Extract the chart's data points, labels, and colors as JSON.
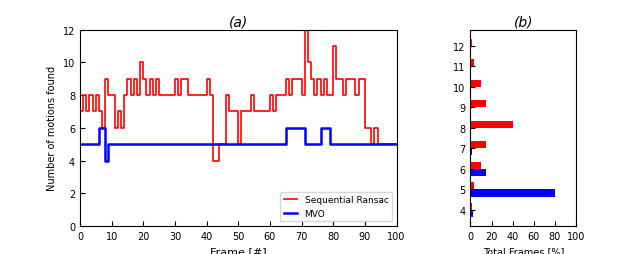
{
  "title_a": "(a)",
  "title_b": "(b)",
  "xlabel_a": "Frame [#]",
  "ylabel_a": "Number of motions found",
  "xlabel_b": "Total Frames [%]",
  "xlim_a": [
    0,
    100
  ],
  "ylim_a": [
    0,
    12
  ],
  "xlim_b": [
    0,
    100
  ],
  "red_color": "#FF0000",
  "blue_color": "#0000FF",
  "legend_labels": [
    "Sequential Ransac",
    "MVO"
  ],
  "red_x": [
    0,
    1,
    2,
    3,
    4,
    5,
    6,
    7,
    8,
    9,
    10,
    11,
    12,
    13,
    14,
    15,
    16,
    17,
    18,
    19,
    20,
    21,
    22,
    23,
    24,
    25,
    26,
    27,
    28,
    29,
    30,
    31,
    32,
    33,
    34,
    35,
    36,
    37,
    38,
    39,
    40,
    41,
    42,
    43,
    44,
    45,
    46,
    47,
    48,
    49,
    50,
    51,
    52,
    53,
    54,
    55,
    56,
    57,
    58,
    59,
    60,
    61,
    62,
    63,
    64,
    65,
    66,
    67,
    68,
    69,
    70,
    71,
    72,
    73,
    74,
    75,
    76,
    77,
    78,
    79,
    80,
    81,
    82,
    83,
    84,
    85,
    86,
    87,
    88,
    89,
    90,
    91,
    92,
    93,
    94,
    95,
    96,
    97,
    98,
    99,
    100
  ],
  "red_y": [
    7,
    8,
    7,
    8,
    7,
    8,
    7,
    6,
    9,
    8,
    8,
    6,
    7,
    6,
    8,
    9,
    8,
    9,
    8,
    10,
    9,
    8,
    9,
    8,
    9,
    8,
    8,
    8,
    8,
    8,
    9,
    8,
    9,
    9,
    8,
    8,
    8,
    8,
    8,
    8,
    9,
    8,
    4,
    4,
    5,
    5,
    8,
    7,
    7,
    7,
    5,
    7,
    7,
    7,
    8,
    7,
    7,
    7,
    7,
    7,
    8,
    7,
    8,
    8,
    8,
    9,
    8,
    9,
    9,
    9,
    8,
    12,
    10,
    9,
    8,
    9,
    8,
    9,
    8,
    8,
    11,
    9,
    9,
    8,
    9,
    9,
    9,
    8,
    9,
    9,
    6,
    6,
    5,
    6,
    5,
    5,
    5,
    5,
    5,
    5,
    5
  ],
  "blue_x": [
    0,
    1,
    2,
    3,
    4,
    5,
    6,
    7,
    8,
    9,
    10,
    11,
    12,
    13,
    14,
    15,
    16,
    17,
    18,
    19,
    20,
    21,
    22,
    23,
    24,
    25,
    26,
    27,
    28,
    29,
    30,
    31,
    32,
    33,
    34,
    35,
    36,
    37,
    38,
    39,
    40,
    41,
    42,
    43,
    44,
    45,
    46,
    47,
    48,
    49,
    50,
    51,
    52,
    53,
    54,
    55,
    56,
    57,
    58,
    59,
    60,
    61,
    62,
    63,
    64,
    65,
    66,
    67,
    68,
    69,
    70,
    71,
    72,
    73,
    74,
    75,
    76,
    77,
    78,
    79,
    80,
    81,
    82,
    83,
    84,
    85,
    86,
    87,
    88,
    89,
    90,
    91,
    92,
    93,
    94,
    95,
    96,
    97,
    98,
    99,
    100
  ],
  "blue_y": [
    5,
    5,
    5,
    5,
    5,
    5,
    6,
    6,
    4,
    5,
    5,
    5,
    5,
    5,
    5,
    5,
    5,
    5,
    5,
    5,
    5,
    5,
    5,
    5,
    5,
    5,
    5,
    5,
    5,
    5,
    5,
    5,
    5,
    5,
    5,
    5,
    5,
    5,
    5,
    5,
    5,
    5,
    5,
    5,
    5,
    5,
    5,
    5,
    5,
    5,
    5,
    5,
    5,
    5,
    5,
    5,
    5,
    5,
    5,
    5,
    5,
    5,
    5,
    5,
    5,
    6,
    6,
    6,
    6,
    6,
    6,
    5,
    5,
    5,
    5,
    5,
    6,
    6,
    6,
    5,
    5,
    5,
    5,
    5,
    5,
    5,
    5,
    5,
    5,
    5,
    5,
    5,
    5,
    5,
    5,
    5,
    5,
    5,
    5,
    5,
    5
  ],
  "bar_y_labels": [
    4,
    5,
    6,
    7,
    8,
    9,
    10,
    11,
    12
  ],
  "bar_red_values": [
    1,
    3,
    10,
    15,
    40,
    15,
    10,
    3,
    1
  ],
  "bar_blue_values": [
    2,
    80,
    15,
    1,
    0,
    0,
    0,
    0,
    0
  ],
  "bar_height": 0.35
}
